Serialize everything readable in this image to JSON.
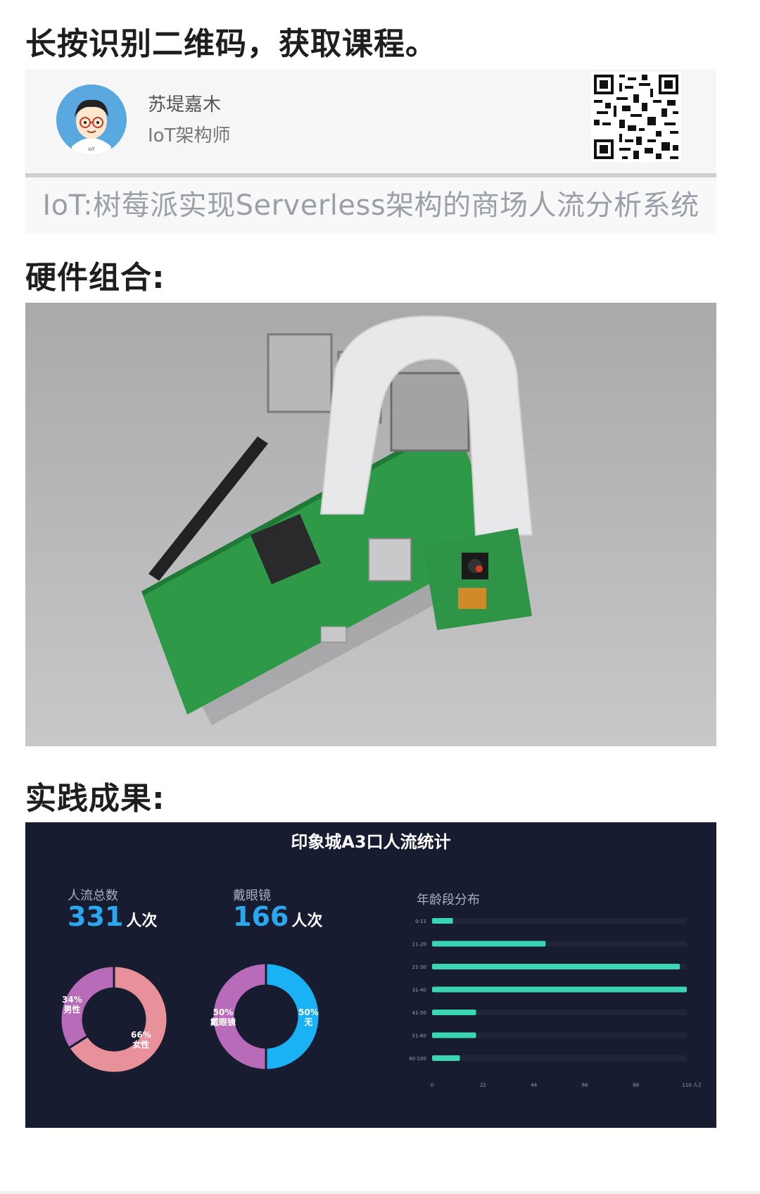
{
  "headings": {
    "scan": "长按识别二维码，获取课程。",
    "hardware": "硬件组合:",
    "results": "实践成果:"
  },
  "author": {
    "name": "苏堤嘉木",
    "role": "IoT架构师",
    "avatar_tag": "IoT"
  },
  "course": {
    "title": "IoT:树莓派实现Serverless架构的商场人流分析系统"
  },
  "dashboard": {
    "title": "印象城A3口人流统计",
    "total": {
      "label": "人流总数",
      "value": "331",
      "unit": "人次"
    },
    "glasses": {
      "label": "戴眼镜",
      "value": "166",
      "unit": "人次"
    },
    "age_title": "年龄段分布",
    "colors": {
      "bg": "#181c30",
      "accent": "#2aa7ee",
      "bar": "#3ad6b4",
      "pink": "#e8919a",
      "purple": "#b76bb8"
    }
  },
  "chart_data": [
    {
      "type": "pie",
      "variant": "donut",
      "labels": [
        "男性",
        "女性"
      ],
      "values": [
        34,
        66
      ],
      "value_labels": [
        "34%",
        "66%"
      ],
      "colors": [
        "#b76bb8",
        "#e8919a"
      ]
    },
    {
      "type": "pie",
      "variant": "donut",
      "labels": [
        "戴眼镜",
        "无"
      ],
      "values": [
        50,
        50
      ],
      "value_labels": [
        "50%",
        "50%"
      ],
      "colors": [
        "#b76bb8",
        "#1ab2f5"
      ]
    },
    {
      "type": "bar",
      "orientation": "horizontal",
      "title": "年龄段分布",
      "categories": [
        "0-11",
        "11-20",
        "21-30",
        "31-40",
        "41-50",
        "51-60",
        "60-100"
      ],
      "values": [
        9,
        49,
        107,
        110,
        19,
        19,
        12
      ],
      "xlim": [
        0,
        110
      ],
      "xticks": [
        "0",
        "22",
        "44",
        "66",
        "88",
        "110"
      ],
      "x_unit": "人次",
      "color": "#3ad6b4"
    }
  ]
}
